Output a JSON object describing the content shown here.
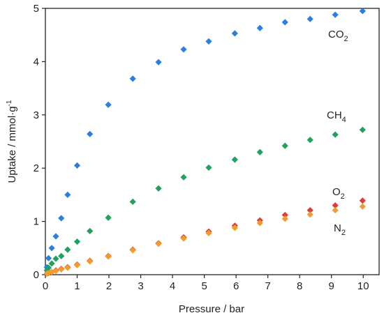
{
  "chart_data": {
    "type": "scatter",
    "x_label": "Pressure / bar",
    "y_label": "Uptake / mmol·g",
    "y_label_sup": "-1",
    "x": [
      0.05,
      0.1,
      0.2,
      0.33,
      0.5,
      0.7,
      1.0,
      1.4,
      1.98,
      2.75,
      3.56,
      4.35,
      5.14,
      5.96,
      6.75,
      7.54,
      8.33,
      9.12,
      9.98
    ],
    "series": [
      {
        "name": "CO",
        "name_sub": "2",
        "color": "#2a7fe0",
        "values": [
          0.14,
          0.31,
          0.5,
          0.72,
          1.06,
          1.5,
          2.05,
          2.64,
          3.19,
          3.68,
          3.99,
          4.23,
          4.38,
          4.53,
          4.63,
          4.74,
          4.8,
          4.88,
          4.95
        ]
      },
      {
        "name": "CH",
        "name_sub": "4",
        "color": "#22a060",
        "values": [
          0.08,
          0.13,
          0.21,
          0.3,
          0.35,
          0.47,
          0.62,
          0.82,
          1.07,
          1.37,
          1.62,
          1.83,
          2.01,
          2.16,
          2.3,
          2.42,
          2.53,
          2.63,
          2.72
        ]
      },
      {
        "name": "O",
        "name_sub": "2",
        "color": "#d9403a",
        "values": [
          0.02,
          0.03,
          0.05,
          0.08,
          0.11,
          0.14,
          0.19,
          0.26,
          0.35,
          0.47,
          0.59,
          0.7,
          0.81,
          0.92,
          1.02,
          1.12,
          1.21,
          1.3,
          1.39
        ]
      },
      {
        "name": "N",
        "name_sub": "2",
        "color": "#f39c2b",
        "values": [
          0.02,
          0.03,
          0.05,
          0.07,
          0.1,
          0.13,
          0.18,
          0.25,
          0.34,
          0.46,
          0.58,
          0.68,
          0.78,
          0.88,
          0.97,
          1.05,
          1.13,
          1.21,
          1.28
        ]
      }
    ],
    "xlim": [
      0,
      10.5
    ],
    "xticks": [
      0,
      1,
      2,
      3,
      4,
      5,
      6,
      7,
      8,
      9,
      10
    ],
    "ylim": [
      0,
      5
    ],
    "yticks": [
      0,
      1,
      2,
      3,
      4,
      5
    ],
    "grid": false
  }
}
